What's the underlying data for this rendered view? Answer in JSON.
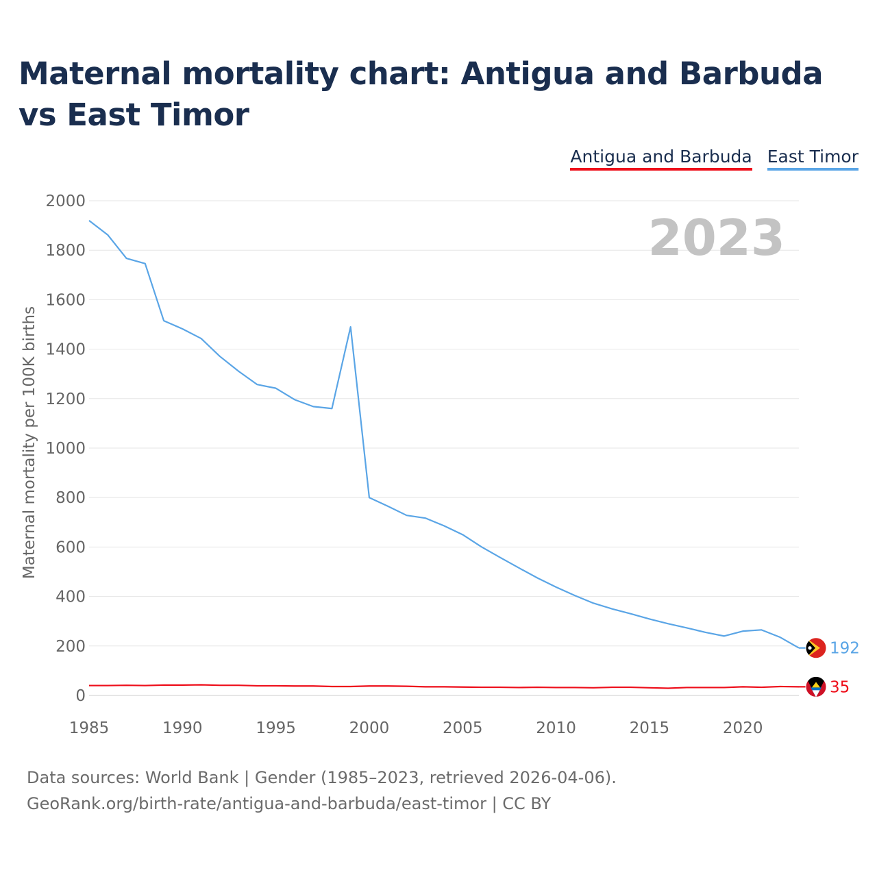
{
  "title": "Maternal mortality chart: Antigua and Barbuda vs East Timor",
  "legend": [
    {
      "label": "Antigua and Barbuda",
      "color": "#ee0e1a"
    },
    {
      "label": "East Timor",
      "color": "#5aa5e6"
    }
  ],
  "year_watermark": "2023",
  "footer": {
    "line1": "Data sources: World Bank | Gender (1985–2023, retrieved 2026-04-06).",
    "line2": "GeoRank.org/birth-rate/antigua-and-barbuda/east-timor | CC BY"
  },
  "chart_data": {
    "type": "line",
    "title": "Maternal mortality chart: Antigua and Barbuda vs East Timor",
    "xlabel": "",
    "ylabel": "Maternal mortality per 100K births",
    "xlim": [
      1985,
      2023
    ],
    "ylim": [
      0,
      2000
    ],
    "x_ticks": [
      1985,
      1990,
      1995,
      2000,
      2005,
      2010,
      2015,
      2020
    ],
    "y_ticks": [
      0,
      200,
      400,
      600,
      800,
      1000,
      1200,
      1400,
      1600,
      1800,
      2000
    ],
    "x": [
      1985,
      1986,
      1987,
      1988,
      1989,
      1990,
      1991,
      1992,
      1993,
      1994,
      1995,
      1996,
      1997,
      1998,
      1999,
      2000,
      2001,
      2002,
      2003,
      2004,
      2005,
      2006,
      2007,
      2008,
      2009,
      2010,
      2011,
      2012,
      2013,
      2014,
      2015,
      2016,
      2017,
      2018,
      2019,
      2020,
      2021,
      2022,
      2023
    ],
    "series": [
      {
        "name": "East Timor",
        "color": "#5aa5e6",
        "end_label": "192",
        "values": [
          1920,
          1862,
          1767,
          1746,
          1515,
          1482,
          1443,
          1371,
          1311,
          1257,
          1242,
          1196,
          1168,
          1160,
          1490,
          800,
          765,
          728,
          717,
          686,
          650,
          601,
          558,
          516,
          475,
          438,
          404,
          373,
          350,
          330,
          309,
          290,
          273,
          255,
          240,
          260,
          265,
          235,
          192
        ]
      },
      {
        "name": "Antigua and Barbuda",
        "color": "#ee0e1a",
        "end_label": "35",
        "values": [
          40,
          40,
          41,
          40,
          42,
          42,
          43,
          41,
          41,
          39,
          39,
          38,
          38,
          36,
          36,
          38,
          38,
          37,
          35,
          35,
          34,
          33,
          33,
          32,
          33,
          32,
          32,
          31,
          33,
          33,
          31,
          29,
          32,
          32,
          32,
          35,
          33,
          36,
          35
        ]
      }
    ]
  }
}
